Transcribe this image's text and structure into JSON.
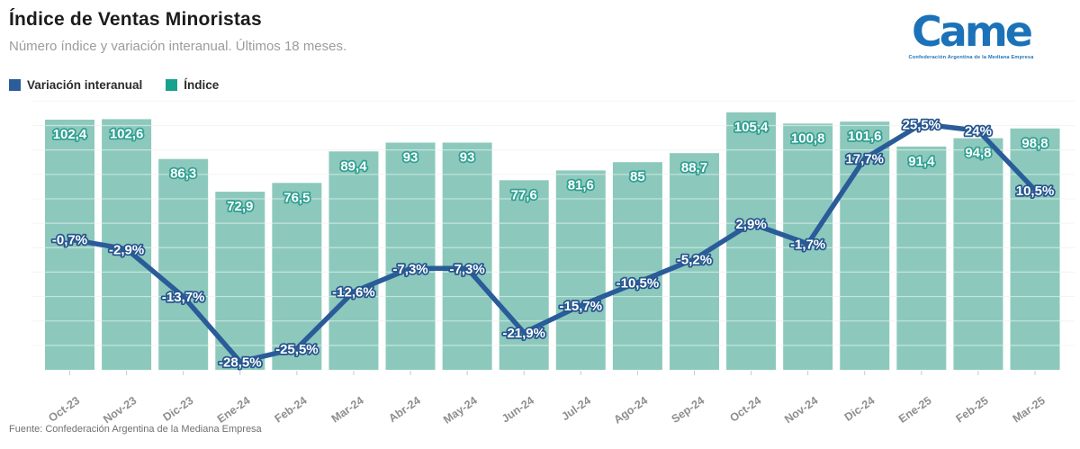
{
  "header": {
    "title": "Índice de Ventas Minoristas",
    "subtitle": "Número índice y variación interanual. Últimos 18 meses.",
    "logo": {
      "wordmark": "Came",
      "tagline": "Confederación Argentina de la Mediana Empresa"
    }
  },
  "legend": [
    {
      "label": "Variación interanual",
      "color": "#2b5d9b"
    },
    {
      "label": "Índice",
      "color": "#18a28e"
    }
  ],
  "footer": {
    "source": "Fuente: Confederación Argentina de la Mediana Empresa"
  },
  "colors": {
    "bar": "#8cc9bc",
    "line": "#2a5c99",
    "bar_label_fill": "#ffffff",
    "bar_label_outline": "#31a093",
    "line_label_fill": "#ffffff",
    "line_label_outline": "#27568f",
    "grid": "#e9e9e9",
    "grid_over_bars": "rgba(255,255,255,0.5)",
    "tick": "#c9c9c9",
    "axis_text": "#8e8e8e"
  },
  "chart_data": {
    "type": "bar+line",
    "title": "Índice de Ventas Minoristas",
    "subtitle": "Número índice y variación interanual. Últimos 18 meses.",
    "categories": [
      "Oct-23",
      "Nov-23",
      "Dic-23",
      "Ene-24",
      "Feb-24",
      "Mar-24",
      "Abr-24",
      "May-24",
      "Jun-24",
      "Jul-24",
      "Ago-24",
      "Sep-24",
      "Oct-24",
      "Nov-24",
      "Dic-24",
      "Ene-25",
      "Feb-25",
      "Mar-25"
    ],
    "series": [
      {
        "name": "Índice",
        "type": "bar",
        "values": [
          102.4,
          102.6,
          86.3,
          72.9,
          76.5,
          89.4,
          93,
          93,
          77.6,
          81.6,
          85,
          88.7,
          105.4,
          100.8,
          101.6,
          91.4,
          94.8,
          98.8
        ],
        "labels": [
          "102,4",
          "102,6",
          "86,3",
          "72,9",
          "76,5",
          "89,4",
          "93",
          "93",
          "77,6",
          "81,6",
          "85",
          "88,7",
          "105,4",
          "100,8",
          "101,6",
          "91,4",
          "94,8",
          "98,8"
        ]
      },
      {
        "name": "Variación interanual",
        "type": "line",
        "values": [
          -0.7,
          -2.9,
          -13.7,
          -28.5,
          -25.5,
          -12.6,
          -7.3,
          -7.3,
          -21.9,
          -15.7,
          -10.5,
          -5.2,
          2.9,
          -1.7,
          17.7,
          25.5,
          24,
          10.5
        ],
        "labels": [
          "-0,7%",
          "-2,9%",
          "-13,7%",
          "-28,5%",
          "-25,5%",
          "-12,6%",
          "-7,3%",
          "-7,3%",
          "-21,9%",
          "-15,7%",
          "-10,5%",
          "-5,2%",
          "2,9%",
          "-1,7%",
          "17,7%",
          "25,5%",
          "24%",
          "10,5%"
        ]
      }
    ],
    "bar_axis_range": [
      0,
      113
    ],
    "line_axis_range_pct": [
      -30.5,
      30.5
    ],
    "grid": true,
    "gridline_step_index_units": 10,
    "legend_position": "top-left"
  }
}
